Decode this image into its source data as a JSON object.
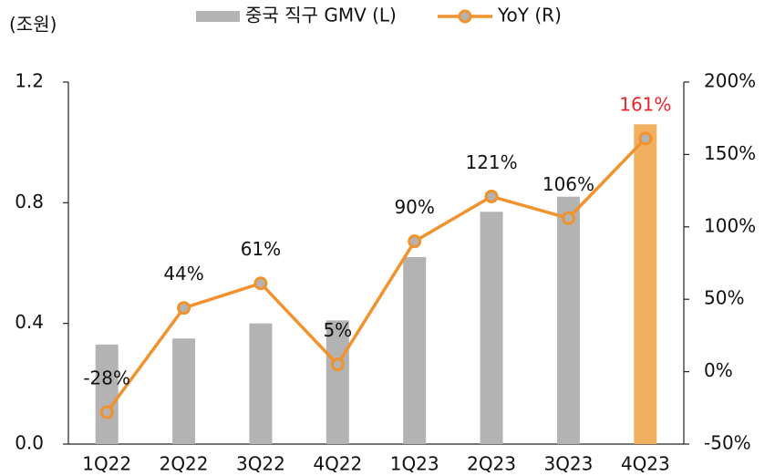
{
  "chart_data": {
    "type": "bar-line",
    "y_unit_label": "(조원)",
    "categories": [
      "1Q22",
      "2Q22",
      "3Q22",
      "4Q22",
      "1Q23",
      "2Q23",
      "3Q23",
      "4Q23"
    ],
    "series": [
      {
        "name": "중국 직구 GMV (L)",
        "type": "bar",
        "axis": "y",
        "color": "#b3b3b3",
        "colors": [
          "#b3b3b3",
          "#b3b3b3",
          "#b3b3b3",
          "#b3b3b3",
          "#b3b3b3",
          "#b3b3b3",
          "#b3b3b3",
          "#f0b060"
        ],
        "values": [
          0.33,
          0.35,
          0.4,
          0.41,
          0.62,
          0.77,
          0.82,
          1.06
        ]
      },
      {
        "name": "YoY (R)",
        "type": "line",
        "axis": "y2",
        "color": "#f0922e",
        "values": [
          -28,
          44,
          61,
          5,
          90,
          121,
          106,
          161
        ],
        "value_labels": [
          "-28%",
          "44%",
          "61%",
          "5%",
          "90%",
          "121%",
          "106%",
          "161%"
        ],
        "value_label_colors": [
          "#111111",
          "#111111",
          "#111111",
          "#111111",
          "#111111",
          "#111111",
          "#111111",
          "#e8262a"
        ]
      }
    ],
    "ylim": [
      0,
      1.2
    ],
    "yticks": [
      {
        "value": 0,
        "label": "0.0"
      },
      0.4,
      0.8,
      1.2
    ],
    "y2lim": [
      -50,
      200
    ],
    "y2ticks": [
      {
        "value": -50,
        "label": "-50%"
      },
      {
        "value": 0,
        "label": "0%"
      },
      {
        "value": 50,
        "label": "50%"
      },
      {
        "value": 100,
        "label": "100%"
      },
      {
        "value": 150,
        "label": "150%"
      },
      {
        "value": 200,
        "label": "200%"
      }
    ],
    "legend": "top"
  }
}
